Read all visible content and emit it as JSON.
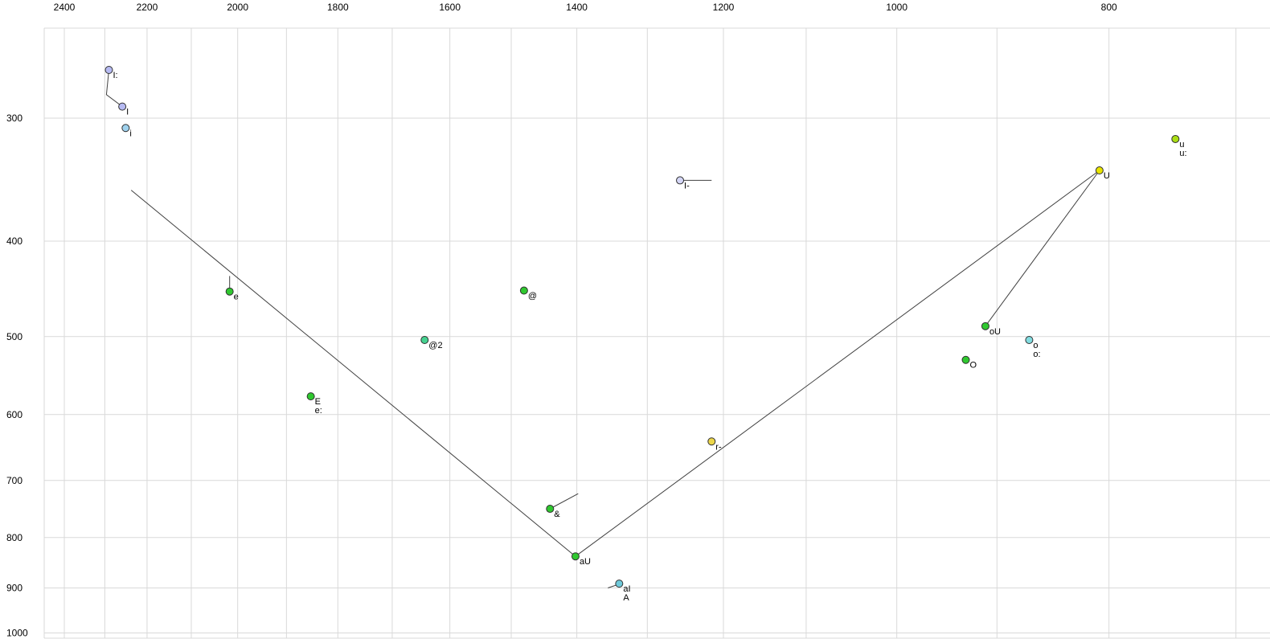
{
  "chart_data": {
    "type": "scatter",
    "title": "",
    "description": "Vowel formant plot (F2 decreasing left-to-right on top axis, F1 increasing downward on left axis, log-log scale)",
    "axes": {
      "x": {
        "position": "top",
        "scale": "log",
        "reversed": true,
        "tick_labels": [
          2400,
          2200,
          2000,
          1800,
          1600,
          1400,
          1200,
          1000,
          800
        ],
        "gridlines": [
          2400,
          2300,
          2200,
          2100,
          2000,
          1900,
          1800,
          1700,
          1600,
          1500,
          1400,
          1300,
          1200,
          1100,
          1000,
          900,
          800,
          700
        ]
      },
      "y": {
        "position": "left",
        "scale": "log",
        "reversed": true,
        "tick_labels": [
          300,
          400,
          500,
          600,
          700,
          800,
          900,
          1000
        ],
        "gridlines": [
          300,
          400,
          500,
          600,
          700,
          800,
          900,
          1000
        ]
      }
    },
    "points": [
      {
        "labels": [
          "I:"
        ],
        "f2": 2290,
        "f1": 268,
        "color": "#b6baf2"
      },
      {
        "labels": [
          "I"
        ],
        "f2": 2258,
        "f1": 292,
        "color": "#b6baf2"
      },
      {
        "labels": [
          "i"
        ],
        "f2": 2250,
        "f1": 307,
        "color": "#9fd2ee"
      },
      {
        "labels": [
          "u",
          "u:"
        ],
        "f2": 746,
        "f1": 315,
        "color": "#aade14"
      },
      {
        "labels": [
          "U"
        ],
        "f2": 808,
        "f1": 339,
        "color": "#e8e400"
      },
      {
        "labels": [
          "I-"
        ],
        "f2": 1256,
        "f1": 347,
        "color": "#d4d6f6"
      },
      {
        "labels": [
          "e"
        ],
        "f2": 2017,
        "f1": 450,
        "color": "#2fc82f"
      },
      {
        "labels": [
          "@"
        ],
        "f2": 1480,
        "f1": 449,
        "color": "#2fc82f"
      },
      {
        "labels": [
          "@2"
        ],
        "f2": 1643,
        "f1": 504,
        "color": "#45d190"
      },
      {
        "labels": [
          "oU"
        ],
        "f2": 911,
        "f1": 488,
        "color": "#2fc82f"
      },
      {
        "labels": [
          "o",
          "o:"
        ],
        "f2": 870,
        "f1": 504,
        "color": "#82dce0"
      },
      {
        "labels": [
          "O"
        ],
        "f2": 930,
        "f1": 528,
        "color": "#2fc82f"
      },
      {
        "labels": [
          "E",
          "e:"
        ],
        "f2": 1852,
        "f1": 575,
        "color": "#2fc82f"
      },
      {
        "labels": [
          "r-"
        ],
        "f2": 1215,
        "f1": 639,
        "color": "#ecd64a"
      },
      {
        "labels": [
          "&"
        ],
        "f2": 1440,
        "f1": 748,
        "color": "#2fc82f"
      },
      {
        "labels": [
          "aU"
        ],
        "f2": 1402,
        "f1": 836,
        "color": "#2fc82f"
      },
      {
        "labels": [
          "aI",
          "A"
        ],
        "f2": 1339,
        "f1": 891,
        "color": "#6fc9da"
      }
    ],
    "segments": [
      {
        "name": "v-left-branch",
        "pts": [
          [
            2237,
            355
          ],
          [
            1402,
            836
          ]
        ]
      },
      {
        "name": "v-right-branch",
        "pts": [
          [
            1402,
            836
          ],
          [
            808,
            339
          ]
        ]
      },
      {
        "name": "u-to-ou-branch",
        "pts": [
          [
            808,
            339
          ],
          [
            911,
            488
          ]
        ]
      },
      {
        "name": "i-colon-tail",
        "pts": [
          [
            2290,
            268
          ],
          [
            2296,
            284
          ],
          [
            2258,
            292
          ]
        ]
      },
      {
        "name": "e-tick",
        "pts": [
          [
            2017,
            434
          ],
          [
            2017,
            450
          ]
        ]
      },
      {
        "name": "i-bar-tick",
        "pts": [
          [
            1256,
            347
          ],
          [
            1215,
            347
          ]
        ]
      },
      {
        "name": "ampersand-tick",
        "pts": [
          [
            1440,
            748
          ],
          [
            1398,
            722
          ]
        ]
      },
      {
        "name": "ai-tick",
        "pts": [
          [
            1355,
            900
          ],
          [
            1341,
            893
          ]
        ]
      }
    ],
    "colors": {
      "background": "#ffffff",
      "grid": "#d9d9d9",
      "trajectory": "#404040",
      "point_stroke": "#303030",
      "text": "#000000"
    }
  }
}
